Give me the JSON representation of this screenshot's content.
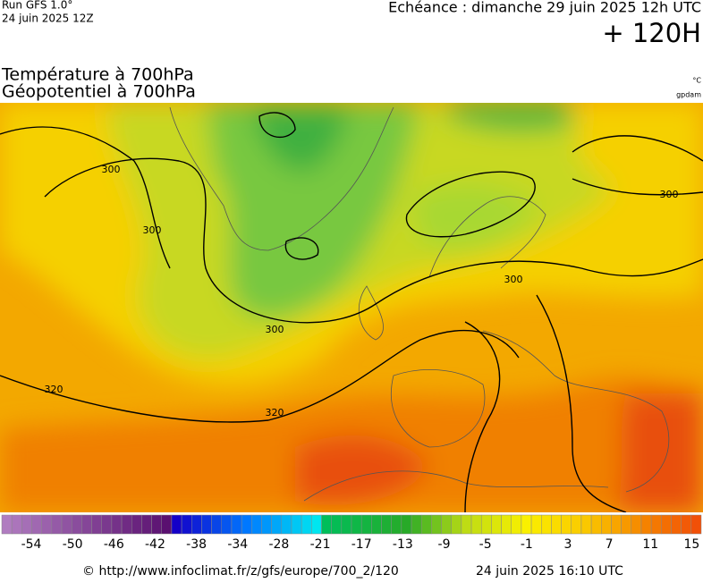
{
  "header": {
    "run": "Run GFS 1.0°",
    "run_date": "24 juin 2025 12Z",
    "valid": "Echéance : dimanche 29 juin 2025 12h UTC",
    "lead": "+ 120H"
  },
  "titles": [
    "Température à 700hPa",
    "Géopotentiel à 700hPa"
  ],
  "units": [
    "°C",
    "gpdam"
  ],
  "contour_labels": [
    "300",
    "300",
    "300",
    "300",
    "300",
    "320",
    "320"
  ],
  "legend": {
    "labels": [
      -54,
      -50,
      -46,
      -42,
      -38,
      -34,
      -28,
      -21,
      -17,
      -13,
      -9,
      -5,
      -1,
      3,
      7,
      11,
      15
    ]
  },
  "footer": {
    "source": "© http://www.infoclimat.fr/z/gfs/europe/700_2/120",
    "generated": "24 juin 2025 16:10 UTC"
  }
}
